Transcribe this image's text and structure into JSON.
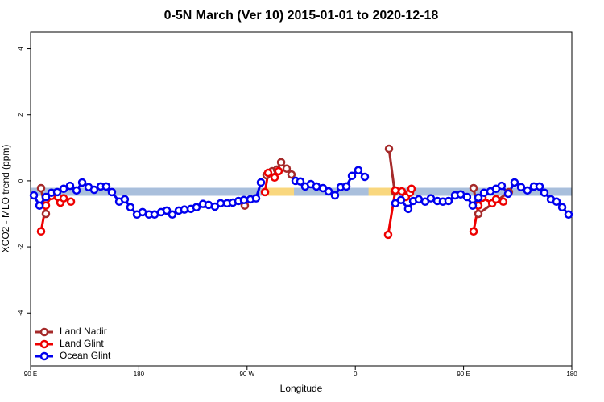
{
  "chart_data": {
    "type": "line",
    "title": "0-5N March (Ver 10)   2015-01-01 to 2020-12-18",
    "x_label": "Longitude",
    "y_label": "XCO2 - MLO trend (ppm)",
    "xlim": [
      90,
      540
    ],
    "xticks": [
      {
        "value": 90,
        "label": "90 E"
      },
      {
        "value": 180,
        "label": "180"
      },
      {
        "value": 270,
        "label": "90 W"
      },
      {
        "value": 360,
        "label": "0"
      },
      {
        "value": 450,
        "label": "90 E"
      },
      {
        "value": 540,
        "label": "180"
      }
    ],
    "ylim": [
      -5.6,
      4.5
    ],
    "yticks": [
      -4,
      -2,
      0,
      2,
      4
    ],
    "legend": "bottomleft",
    "band": {
      "value": -0.33,
      "color": "#a9bfdc",
      "highlights": [
        {
          "x": [
            285.5,
            309
          ],
          "color": "#f9d77e"
        },
        {
          "x": [
            371,
            391
          ],
          "color": "#f9d77e"
        }
      ]
    },
    "series": [
      {
        "name": "Land Nadir",
        "color": "#a52a2a",
        "x": [
          98.7,
          102.7,
          200,
          268.1,
          280,
          286.2,
          290.9,
          294.9,
          298.3,
          302.9,
          306.9,
          350,
          388.0,
          392.7,
          420,
          458.3,
          462.3,
          487.7
        ],
        "values": [
          -0.22,
          -1.0,
          null,
          -0.75,
          null,
          0.17,
          0.29,
          0.34,
          0.56,
          0.37,
          0.19,
          null,
          0.97,
          -0.32,
          null,
          -0.22,
          -1.0,
          -0.34
        ]
      },
      {
        "name": "Land Glint",
        "color": "#ee0000",
        "x": [
          98.7,
          102.7,
          107.4,
          114.8,
          117.5,
          123.5,
          200,
          284.9,
          287.5,
          292.9,
          296.2,
          350,
          387.3,
          393.3,
          398.7,
          402.0,
          405.4,
          406.7,
          430,
          458.3,
          462.3,
          465.7,
          473.8,
          477.0,
          483.0
        ],
        "values": [
          -1.53,
          -0.75,
          -0.46,
          -0.66,
          -0.53,
          -0.63,
          null,
          -0.34,
          0.24,
          0.1,
          0.29,
          null,
          -1.63,
          -0.29,
          -0.32,
          -0.49,
          -0.36,
          -0.24,
          null,
          -1.53,
          -0.75,
          -0.51,
          -0.68,
          -0.56,
          -0.63
        ]
      },
      {
        "name": "Ocean Glint",
        "color": "#0000ee",
        "x": [
          92.7,
          97.4,
          102.7,
          107.4,
          112.1,
          117.5,
          122.8,
          128.2,
          132.9,
          138.2,
          142.9,
          148.3,
          152.9,
          157.6,
          163.7,
          168.3,
          173.0,
          178.4,
          183.1,
          188.4,
          193.1,
          198.5,
          203.2,
          207.8,
          213.2,
          217.9,
          223.3,
          227.9,
          233.3,
          238.0,
          243.3,
          248.0,
          253.4,
          258.1,
          262.8,
          267.4,
          272.8,
          277.5,
          281.5,
          300,
          310.3,
          314.3,
          318.3,
          323.0,
          327.7,
          333.1,
          337.8,
          343.1,
          347.8,
          352.5,
          357.2,
          362.5,
          367.9,
          375,
          393.3,
          398.0,
          404.0,
          408.1,
          412.7,
          418.1,
          422.8,
          428.2,
          432.8,
          437.5,
          442.9,
          447.6,
          452.9,
          457.6,
          462.3,
          467.0,
          472.3,
          477.0,
          481.7,
          487.1,
          492.4,
          497.8,
          503.1,
          508.5,
          513.2,
          517.2,
          522.6,
          527.3,
          532.0,
          537.3
        ],
        "values": [
          -0.44,
          -0.75,
          -0.49,
          -0.36,
          -0.34,
          -0.24,
          -0.15,
          -0.29,
          -0.05,
          -0.19,
          -0.27,
          -0.17,
          -0.17,
          -0.34,
          -0.63,
          -0.56,
          -0.8,
          -1.02,
          -0.95,
          -1.02,
          -1.02,
          -0.95,
          -0.9,
          -1.02,
          -0.9,
          -0.87,
          -0.85,
          -0.8,
          -0.7,
          -0.73,
          -0.78,
          -0.68,
          -0.68,
          -0.66,
          -0.61,
          -0.58,
          -0.56,
          -0.53,
          -0.05,
          null,
          0.0,
          -0.02,
          -0.17,
          -0.1,
          -0.17,
          -0.22,
          -0.32,
          -0.44,
          -0.19,
          -0.17,
          0.15,
          0.32,
          0.12,
          null,
          -0.68,
          -0.58,
          -0.85,
          -0.61,
          -0.56,
          -0.63,
          -0.53,
          -0.61,
          -0.63,
          -0.61,
          -0.44,
          -0.41,
          -0.49,
          -0.75,
          -0.51,
          -0.36,
          -0.32,
          -0.24,
          -0.15,
          -0.39,
          -0.05,
          -0.19,
          -0.29,
          -0.17,
          -0.17,
          -0.36,
          -0.56,
          -0.63,
          -0.8,
          -1.02
        ]
      }
    ]
  }
}
